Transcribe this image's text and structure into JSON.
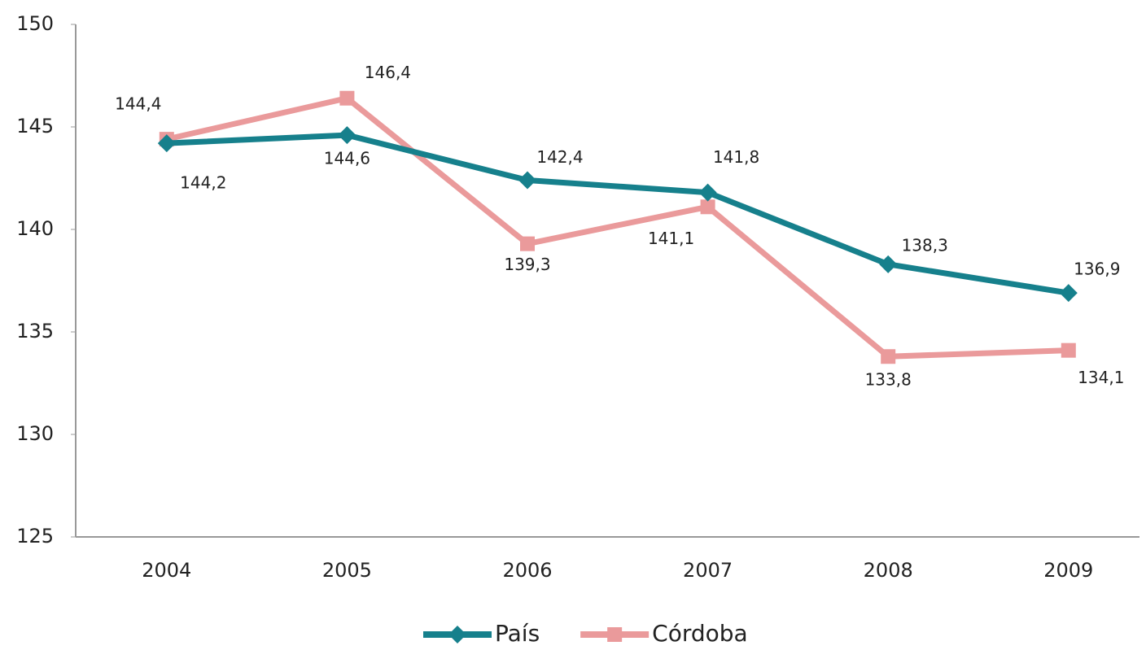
{
  "chart_data": {
    "type": "line",
    "categories": [
      "2004",
      "2005",
      "2006",
      "2007",
      "2008",
      "2009"
    ],
    "series": [
      {
        "name": "País",
        "color": "#16808c",
        "marker": "diamond",
        "values": [
          144.2,
          144.6,
          142.4,
          141.8,
          138.3,
          136.9
        ],
        "value_labels": [
          "144,2",
          "144,6",
          "142,4",
          "141,8",
          "138,3",
          "136,9"
        ]
      },
      {
        "name": "Córdoba",
        "color": "#ea9a9b",
        "marker": "square",
        "values": [
          144.4,
          146.4,
          139.3,
          141.1,
          133.8,
          134.1
        ],
        "value_labels": [
          "144,4",
          "146,4",
          "139,3",
          "141,1",
          "133,8",
          "134,1"
        ]
      }
    ],
    "ylim": [
      125,
      150
    ],
    "yticks": [
      125,
      130,
      135,
      140,
      145,
      150
    ],
    "legend": "bottom"
  }
}
